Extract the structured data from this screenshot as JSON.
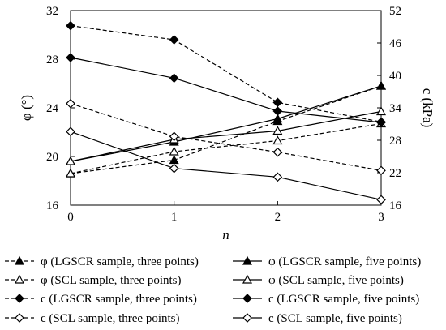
{
  "chart_data": {
    "type": "line",
    "xlabel": "n",
    "ylabel_left": "φ (°)",
    "ylabel_right": "c (kPa)",
    "x": [
      0,
      1,
      2,
      3
    ],
    "x_ticks": [
      "0",
      "1",
      "2",
      "3"
    ],
    "y_left_ticks": [
      "16",
      "20",
      "24",
      "28",
      "32"
    ],
    "y_right_ticks": [
      "16",
      "22",
      "28",
      "34",
      "40",
      "46",
      "52"
    ],
    "ylim_left": [
      16,
      32
    ],
    "ylim_right": [
      16,
      52
    ],
    "grid": false,
    "legend_position": "bottom",
    "series": [
      {
        "name": "φ (LGSCR sample, three points)",
        "axis": "left",
        "marker": "triangle",
        "filled": true,
        "dashed": true,
        "values": [
          18.6,
          19.7,
          22.9,
          25.8
        ]
      },
      {
        "name": "φ (LGSCR sample, five points)",
        "axis": "left",
        "marker": "triangle",
        "filled": true,
        "dashed": false,
        "values": [
          19.6,
          21.2,
          23.1,
          25.8
        ]
      },
      {
        "name": "φ (SCL sample, three points)",
        "axis": "left",
        "marker": "triangle",
        "filled": false,
        "dashed": true,
        "values": [
          18.6,
          20.4,
          21.3,
          22.7
        ]
      },
      {
        "name": "φ (SCL sample, five points)",
        "axis": "left",
        "marker": "triangle",
        "filled": false,
        "dashed": false,
        "values": [
          19.6,
          21.4,
          22.1,
          23.7
        ]
      },
      {
        "name": "c (LGSCR sample, three points)",
        "axis": "right",
        "marker": "diamond",
        "filled": true,
        "dashed": true,
        "values": [
          49.2,
          46.6,
          35.0,
          31.4
        ]
      },
      {
        "name": "c (LGSCR sample, five points)",
        "axis": "right",
        "marker": "diamond",
        "filled": true,
        "dashed": false,
        "values": [
          43.3,
          39.5,
          33.4,
          31.3
        ]
      },
      {
        "name": "c (SCL sample, three points)",
        "axis": "right",
        "marker": "diamond",
        "filled": false,
        "dashed": true,
        "values": [
          34.8,
          28.7,
          25.8,
          22.4
        ]
      },
      {
        "name": "c (SCL sample, five points)",
        "axis": "right",
        "marker": "diamond",
        "filled": false,
        "dashed": false,
        "values": [
          29.6,
          22.8,
          21.2,
          17.0
        ]
      }
    ]
  }
}
